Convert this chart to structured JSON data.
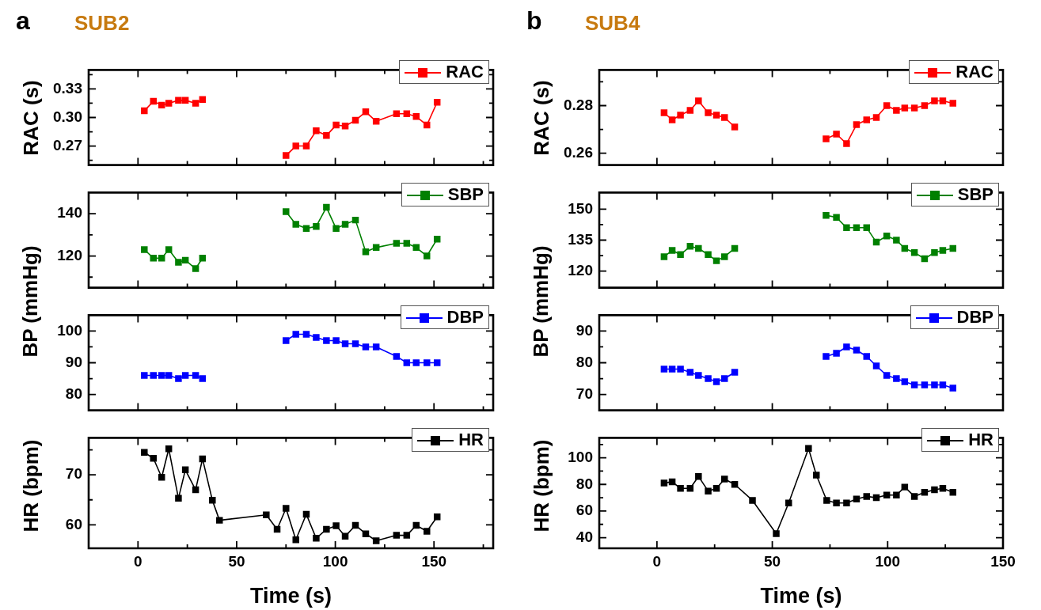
{
  "chart_data": [
    {
      "type": "line",
      "title": "SUB2",
      "annotations": [
        "a"
      ],
      "ylabel": "RAC (s)",
      "xlim": [
        -25,
        180
      ],
      "xticks": [
        0,
        {
          "value": 25,
          "label": null
        },
        50,
        {
          "value": 75,
          "label": null
        },
        100,
        {
          "value": 125,
          "label": null
        },
        150,
        {
          "value": 175,
          "label": null
        }
      ],
      "ylim": [
        0.25,
        0.35
      ],
      "yticks": [
        {
          "value": 0.255,
          "label": null
        },
        0.27,
        {
          "value": 0.285,
          "label": null
        },
        {
          "value": 0.3,
          "label": "0.30"
        },
        {
          "value": 0.315,
          "label": null
        },
        0.33,
        {
          "value": 0.345,
          "label": null
        }
      ],
      "tick_labels": "y",
      "legend": "top right",
      "marker": "square",
      "line_style": "solid",
      "series": [
        {
          "name": "RAC",
          "color": "#ff0000",
          "x": [
            3.2,
            7.8,
            12,
            15.6,
            20.5,
            24,
            29.2,
            32.7,
            54,
            75,
            80,
            85.3,
            90.3,
            95.5,
            100.4,
            105,
            110.2,
            115.4,
            120.7,
            131,
            136.2,
            141,
            146.4,
            151.6
          ],
          "values": [
            0.307,
            0.317,
            0.313,
            0.315,
            0.318,
            0.318,
            0.315,
            0.319,
            null,
            0.26,
            0.27,
            0.27,
            0.286,
            0.281,
            0.292,
            0.291,
            0.297,
            0.306,
            0.296,
            0.304,
            0.304,
            0.301,
            0.292,
            0.316
          ]
        }
      ]
    },
    {
      "type": "line",
      "ylabel": "BP (mmHg)",
      "xlim": [
        -25,
        180
      ],
      "xticks": [
        0,
        {
          "value": 25,
          "label": null
        },
        50,
        {
          "value": 75,
          "label": null
        },
        100,
        {
          "value": 125,
          "label": null
        },
        150,
        {
          "value": 175,
          "label": null
        }
      ],
      "ylim": [
        105,
        150
      ],
      "yticks": [
        {
          "value": 110,
          "label": null
        },
        120,
        {
          "value": 130,
          "label": null
        },
        140
      ],
      "tick_labels": "y",
      "legend": "top right",
      "marker": "square",
      "line_style": "solid",
      "series": [
        {
          "name": "SBP",
          "color": "#008000",
          "x": [
            3.2,
            7.8,
            12,
            15.6,
            20.5,
            24,
            29.2,
            32.7,
            54,
            75,
            80,
            85.3,
            90.3,
            95.5,
            100.4,
            105,
            110.2,
            115.4,
            120.7,
            131,
            136.2,
            141,
            146.4,
            151.6
          ],
          "values": [
            123,
            119,
            119,
            123,
            117,
            118,
            114,
            119,
            null,
            141,
            135,
            133,
            134,
            143,
            133,
            135,
            137,
            122,
            124,
            126,
            126,
            124,
            120,
            128
          ]
        }
      ]
    },
    {
      "type": "line",
      "xlim": [
        -25,
        180
      ],
      "xticks": [
        0,
        {
          "value": 25,
          "label": null
        },
        50,
        {
          "value": 75,
          "label": null
        },
        100,
        {
          "value": 125,
          "label": null
        },
        150,
        {
          "value": 175,
          "label": null
        }
      ],
      "ylim": [
        75,
        105
      ],
      "yticks": [
        80,
        {
          "value": 85,
          "label": null
        },
        90,
        {
          "value": 95,
          "label": null
        },
        100
      ],
      "tick_labels": "y",
      "legend": "top right",
      "marker": "square",
      "line_style": "solid",
      "series": [
        {
          "name": "DBP",
          "color": "#0000ff",
          "x": [
            3.2,
            7.8,
            12,
            15.6,
            20.5,
            24,
            29.2,
            32.7,
            54,
            75,
            80,
            85.3,
            90.3,
            95.5,
            100.4,
            105,
            110.2,
            115.4,
            120.7,
            131,
            136.2,
            141,
            146.4,
            151.6
          ],
          "values": [
            86,
            86,
            86,
            86,
            85,
            86,
            86,
            85,
            null,
            97,
            99,
            99,
            98,
            97,
            97,
            96,
            96,
            95,
            95,
            92,
            90,
            90,
            90,
            90
          ]
        }
      ]
    },
    {
      "type": "line",
      "ylabel": "HR (bpm)",
      "xlabel": "Time (s)",
      "xlim": [
        -25,
        180
      ],
      "xticks": [
        0,
        {
          "value": 25,
          "label": null
        },
        50,
        {
          "value": 75,
          "label": null
        },
        100,
        {
          "value": 125,
          "label": null
        },
        150,
        {
          "value": 175,
          "label": null
        }
      ],
      "ylim": [
        55.3,
        77.4
      ],
      "yticks": [
        60,
        {
          "value": 65,
          "label": null
        },
        70,
        {
          "value": 75,
          "label": null
        }
      ],
      "legend": "top right",
      "marker": "square",
      "line_style": "solid",
      "series": [
        {
          "name": "HR",
          "color": "#000000",
          "x": [
            3.2,
            7.8,
            12,
            15.6,
            20.5,
            24,
            29.2,
            32.7,
            37.7,
            41.3,
            65,
            70.5,
            75,
            80,
            85.3,
            90.3,
            95.5,
            100.4,
            105,
            110.2,
            115.4,
            120.7,
            131,
            136.2,
            141,
            146.4,
            151.6
          ],
          "values": [
            74.5,
            73.3,
            69.5,
            75.2,
            65.3,
            71,
            67,
            73.2,
            64.9,
            60.9,
            62,
            59.1,
            63.3,
            57,
            62.1,
            57.3,
            59.1,
            59.8,
            57.7,
            59.9,
            58.2,
            56.8,
            57.9,
            57.9,
            59.9,
            58.7,
            61.6
          ]
        }
      ]
    },
    {
      "type": "line",
      "title": "SUB4",
      "annotations": [
        "b"
      ],
      "ylabel": "RAC (s)",
      "xlim": [
        -25,
        150
      ],
      "xticks": [
        0,
        {
          "value": 25,
          "label": null
        },
        50,
        {
          "value": 75,
          "label": null
        },
        100,
        {
          "value": 125,
          "label": null
        }
      ],
      "ylim": [
        0.255,
        0.295
      ],
      "yticks": [
        0.26,
        {
          "value": 0.27,
          "label": null
        },
        0.28,
        {
          "value": 0.29,
          "label": null
        }
      ],
      "tick_labels": "y",
      "legend": "top right",
      "marker": "square",
      "line_style": "solid",
      "series": [
        {
          "name": "RAC",
          "color": "#ff0000",
          "x": [
            3.1,
            6.6,
            10.2,
            14.4,
            18,
            22.2,
            25.8,
            29.3,
            33.7,
            53,
            73.3,
            77.8,
            82.2,
            86.5,
            90.9,
            95.1,
            99.6,
            103.8,
            107.4,
            111.6,
            116,
            120.3,
            123.9,
            128.3
          ],
          "values": [
            0.277,
            0.274,
            0.276,
            0.278,
            0.282,
            0.277,
            0.276,
            0.275,
            0.271,
            null,
            0.266,
            0.268,
            0.264,
            0.272,
            0.274,
            0.275,
            0.28,
            0.278,
            0.279,
            0.279,
            0.28,
            0.282,
            0.282,
            0.281
          ]
        }
      ]
    },
    {
      "type": "line",
      "ylabel": "BP (mmHg)",
      "xlim": [
        -25,
        150
      ],
      "xticks": [
        0,
        {
          "value": 25,
          "label": null
        },
        50,
        {
          "value": 75,
          "label": null
        },
        100,
        {
          "value": 125,
          "label": null
        }
      ],
      "ylim": [
        112,
        158
      ],
      "yticks": [
        120,
        {
          "value": 127.5,
          "label": null
        },
        135,
        {
          "value": 142.5,
          "label": null
        },
        150
      ],
      "tick_labels": "y",
      "legend": "top right",
      "marker": "square",
      "line_style": "solid",
      "series": [
        {
          "name": "SBP",
          "color": "#008000",
          "x": [
            3.1,
            6.6,
            10.2,
            14.4,
            18,
            22.2,
            25.8,
            29.3,
            33.7,
            53,
            73.3,
            77.8,
            82.2,
            86.5,
            90.9,
            95.1,
            99.6,
            103.8,
            107.4,
            111.6,
            116,
            120.3,
            123.9,
            128.3
          ],
          "values": [
            127,
            130,
            128,
            132,
            131,
            128,
            125,
            127,
            131,
            null,
            147,
            146,
            141,
            141,
            141,
            134,
            137,
            135,
            131,
            129,
            126,
            129,
            130,
            131
          ]
        }
      ]
    },
    {
      "type": "line",
      "xlim": [
        -25,
        150
      ],
      "xticks": [
        0,
        {
          "value": 25,
          "label": null
        },
        50,
        {
          "value": 75,
          "label": null
        },
        100,
        {
          "value": 125,
          "label": null
        }
      ],
      "ylim": [
        65,
        95
      ],
      "yticks": [
        70,
        {
          "value": 75,
          "label": null
        },
        80,
        {
          "value": 85,
          "label": null
        },
        90
      ],
      "tick_labels": "y",
      "legend": "top right",
      "marker": "square",
      "line_style": "solid",
      "series": [
        {
          "name": "DBP",
          "color": "#0000ff",
          "x": [
            3.1,
            6.6,
            10.2,
            14.4,
            18,
            22.2,
            25.8,
            29.3,
            33.7,
            53,
            73.3,
            77.8,
            82.2,
            86.5,
            90.9,
            95.1,
            99.6,
            103.8,
            107.4,
            111.6,
            116,
            120.3,
            123.9,
            128.3
          ],
          "values": [
            78,
            78,
            78,
            77,
            76,
            75,
            74,
            75,
            77,
            null,
            82,
            83,
            85,
            84,
            82,
            79,
            76,
            75,
            74,
            73,
            73,
            73,
            73,
            72
          ]
        }
      ]
    },
    {
      "type": "line",
      "ylabel": "HR (bpm)",
      "xlabel": "Time (s)",
      "xlim": [
        -25,
        150
      ],
      "xticks": [
        0,
        {
          "value": 25,
          "label": null
        },
        50,
        {
          "value": 75,
          "label": null
        },
        100,
        {
          "value": 125,
          "label": null
        },
        150
      ],
      "ylim": [
        32,
        115
      ],
      "yticks": [
        40,
        {
          "value": 50,
          "label": null
        },
        60,
        {
          "value": 70,
          "label": null
        },
        80,
        {
          "value": 90,
          "label": null
        },
        100,
        {
          "value": 110,
          "label": null
        }
      ],
      "legend": "top right",
      "marker": "square",
      "line_style": "solid",
      "series": [
        {
          "name": "HR",
          "color": "#000000",
          "x": [
            3.1,
            6.6,
            10.2,
            14.4,
            18,
            22.2,
            25.8,
            29.3,
            33.7,
            41.4,
            51.7,
            57.1,
            65.7,
            69.1,
            73.6,
            77.8,
            82.2,
            86.5,
            90.9,
            95.1,
            99.6,
            103.8,
            107.4,
            111.6,
            116,
            120.3,
            123.9,
            128.3
          ],
          "values": [
            81,
            82,
            77,
            77,
            86,
            75,
            77,
            84,
            80,
            68,
            43,
            66,
            107,
            87,
            68,
            66,
            66,
            69,
            71,
            70,
            72,
            72,
            78,
            71,
            74,
            76,
            77,
            74
          ]
        }
      ]
    }
  ]
}
